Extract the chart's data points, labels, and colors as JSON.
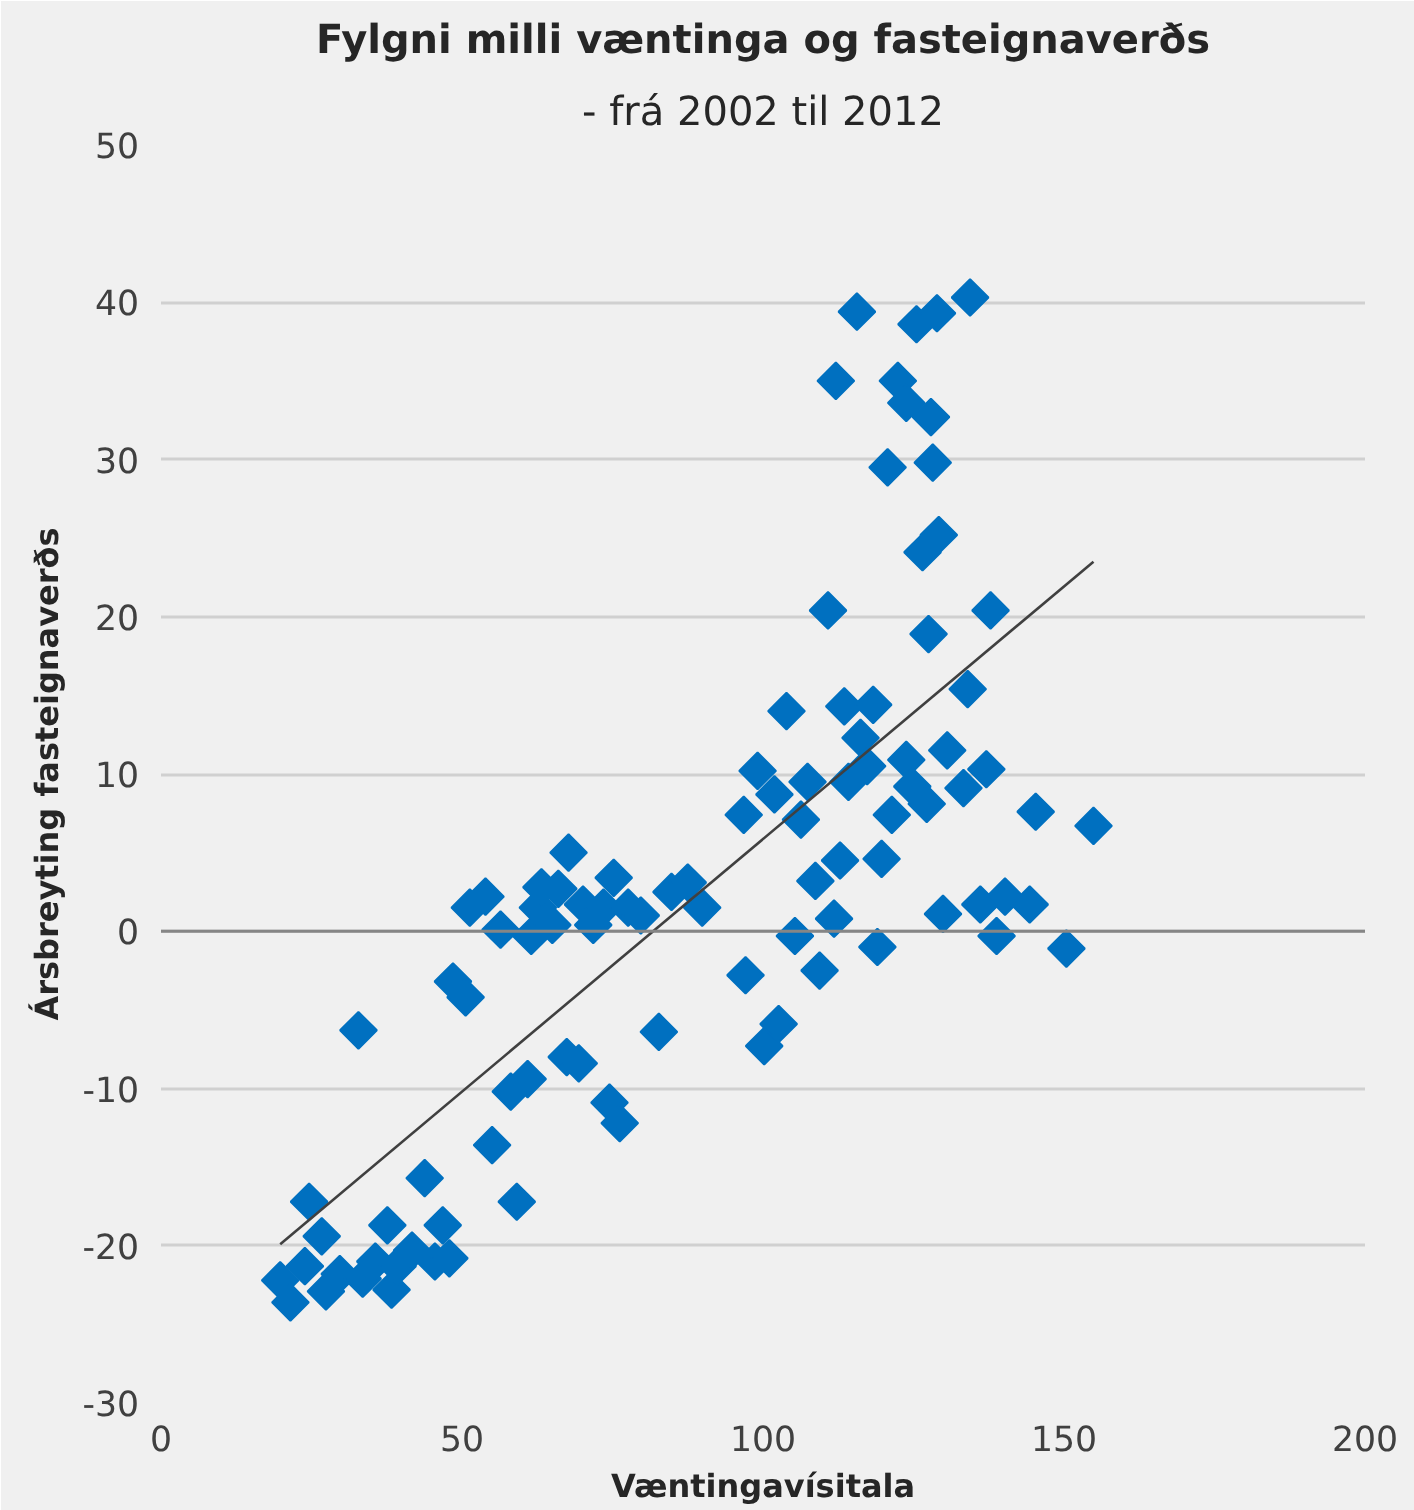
{
  "chart_data": {
    "type": "scatter",
    "title": "Fylgni milli væntinga og fasteignaverðs",
    "subtitle": "- frá 2002 til 2012",
    "xlabel": "Væntingavísitala",
    "ylabel": "Ársbreyting fasteignaverðs",
    "xlim": [
      0,
      200
    ],
    "xticks": [
      0,
      50,
      100,
      150,
      200
    ],
    "ylim": [
      -30,
      50
    ],
    "yticks": [
      -30,
      -20,
      -10,
      0,
      10,
      20,
      30,
      40,
      50
    ],
    "grid": "y",
    "marker": "diamond",
    "ref_lines": [
      {
        "axis": "y",
        "value": 0,
        "color": "#868686"
      }
    ],
    "series": [
      {
        "color": "#0070c0",
        "x": [
          19.8,
          21.5,
          23.9,
          24.6,
          26.7,
          27.4,
          29.7,
          32.8,
          33.5,
          35.6,
          37.6,
          38.3,
          39.3,
          41.7,
          43.8,
          45.5,
          46.8,
          47.9,
          48.5,
          50.6,
          51.3,
          53.9,
          55,
          56.4,
          58.1,
          59.1,
          60.9,
          61.5,
          62.6,
          63.2,
          65,
          66,
          67.4,
          67.7,
          69.4,
          70.1,
          71.8,
          73.5,
          74.5,
          75.2,
          76.2,
          77.6,
          79.7,
          82.7,
          84.8,
          87.5,
          89.9,
          96.8,
          97.1,
          99.1,
          100.2,
          101.9,
          102.6,
          103.9,
          105.3,
          106.3,
          107.4,
          108.7,
          109.4,
          110.8,
          111.8,
          112.1,
          112.8,
          113.5,
          114.2,
          115.6,
          116.2,
          117.3,
          118.3,
          119,
          119.7,
          120.7,
          121.4,
          122.4,
          123.8,
          123.8,
          124.8,
          125.5,
          126.5,
          127.2,
          127.5,
          127.9,
          128.2,
          128.9,
          129.2,
          129.9,
          130.6,
          133.3,
          134,
          134.4,
          136.1,
          137.1,
          137.8,
          138.8,
          140.2,
          144.3,
          145.3,
          150.4,
          154.9
        ],
        "values": [
          -22.2,
          -23.6,
          -21.3,
          -17.2,
          -19.4,
          -22.9,
          -21.8,
          -6.3,
          -22.1,
          -21,
          -18.7,
          -22.8,
          -21.3,
          -20.3,
          -15.7,
          -21,
          -18.7,
          -20.8,
          -3.2,
          -4.2,
          1.5,
          2.2,
          -13.6,
          0.1,
          -10.2,
          -17.2,
          -9.4,
          -0.3,
          1.5,
          2.8,
          0.4,
          2.7,
          -8,
          5,
          -8.4,
          1.7,
          0.4,
          1.5,
          -10.9,
          3.4,
          -12.2,
          1.5,
          1,
          -6.4,
          2.5,
          3.1,
          1.5,
          7.4,
          -2.8,
          10.2,
          -7.3,
          8.7,
          -5.9,
          14,
          -0.3,
          7.1,
          9.5,
          3.2,
          -2.5,
          20.4,
          0.8,
          35,
          4.5,
          14.3,
          9.5,
          39.4,
          12.3,
          10.5,
          14.4,
          -1,
          4.6,
          29.5,
          7.4,
          35,
          33.6,
          10.9,
          9.2,
          38.6,
          24.1,
          8.1,
          18.9,
          32.7,
          29.8,
          39.3,
          25.2,
          1.1,
          11.5,
          9.1,
          15.4,
          40.3,
          1.7,
          10.3,
          20.4,
          -0.3,
          2.2,
          1.7,
          7.6,
          -1.1,
          6.7
        ]
      },
      {
        "type": "line",
        "color": "#404040",
        "x": [
          19.8,
          154.9
        ],
        "values": [
          -19.9,
          23.5
        ],
        "marker": "none"
      }
    ]
  }
}
